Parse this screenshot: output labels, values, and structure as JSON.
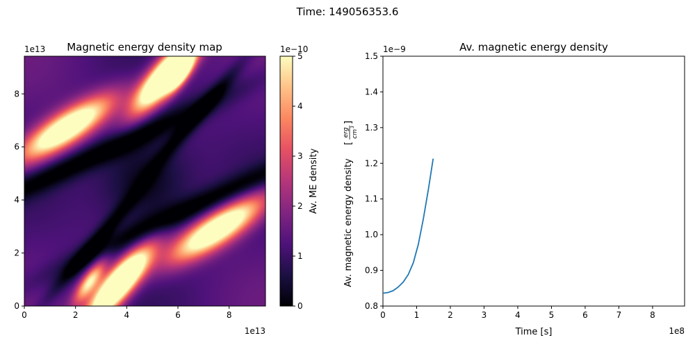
{
  "figure": {
    "suptitle": "Time: 149056353.6"
  },
  "chart_data": [
    {
      "type": "heatmap",
      "title": "Magnetic energy density map",
      "xlabel": "",
      "ylabel": "",
      "x_ticks": [
        "0",
        "2",
        "4",
        "6",
        "8"
      ],
      "y_ticks": [
        "0",
        "2",
        "4",
        "6",
        "8"
      ],
      "x_tick_values": [
        0,
        2,
        4,
        6,
        8
      ],
      "y_tick_values": [
        0,
        2,
        4,
        6,
        8
      ],
      "xlim": [
        0,
        9.42
      ],
      "ylim": [
        0,
        9.42
      ],
      "x_offset_text": "1e13",
      "y_offset_text": "1e13",
      "colormap": "magma",
      "colorbar": {
        "label": "Av. ME density",
        "ticks": [
          "0",
          "1",
          "2",
          "3",
          "4",
          "5"
        ],
        "tick_values": [
          0,
          1,
          2,
          3,
          4,
          5
        ],
        "range": [
          0,
          5
        ],
        "offset_text": "1e−10"
      }
    },
    {
      "type": "line",
      "title": "Av. magnetic energy density",
      "xlabel": "Time [s]",
      "ylabel": "Av. magnetic energy density",
      "ylabel_unit_num": "erg",
      "ylabel_unit_den": "cm",
      "ylabel_unit_den_exp": "3",
      "x_ticks": [
        "0",
        "1",
        "2",
        "3",
        "4",
        "5",
        "6",
        "7",
        "8"
      ],
      "x_tick_values": [
        0,
        1,
        2,
        3,
        4,
        5,
        6,
        7,
        8
      ],
      "y_ticks": [
        "0.8",
        "0.9",
        "1.0",
        "1.1",
        "1.2",
        "1.3",
        "1.4",
        "1.5"
      ],
      "y_tick_values": [
        0.8,
        0.9,
        1.0,
        1.1,
        1.2,
        1.3,
        1.4,
        1.5
      ],
      "xlim": [
        0,
        8.95
      ],
      "ylim": [
        0.8,
        1.5
      ],
      "x_offset_text": "1e8",
      "y_offset_text": "1e−9",
      "line_color": "#1f77b4",
      "series": [
        {
          "x": [
            0,
            0.15,
            0.3,
            0.45,
            0.6,
            0.75,
            0.9,
            1.05,
            1.2,
            1.35,
            1.49
          ],
          "y": [
            0.836,
            0.838,
            0.843,
            0.853,
            0.867,
            0.888,
            0.921,
            0.973,
            1.045,
            1.128,
            1.213
          ]
        }
      ]
    }
  ]
}
